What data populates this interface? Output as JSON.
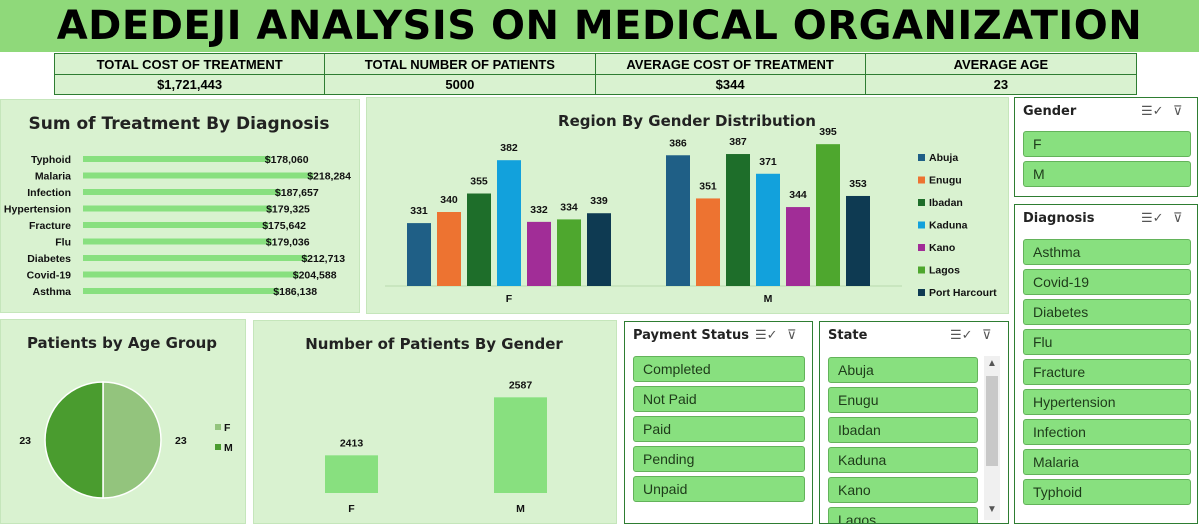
{
  "title": "ADEDEJI ANALYSIS ON MEDICAL ORGANIZATION",
  "kpis": [
    {
      "label": "TOTAL COST OF TREATMENT",
      "value": "$1,721,443"
    },
    {
      "label": "TOTAL NUMBER OF PATIENTS",
      "value": "5000"
    },
    {
      "label": "AVERAGE COST OF TREATMENT",
      "value": "$344"
    },
    {
      "label": "AVERAGE AGE",
      "value": "23"
    }
  ],
  "colors": {
    "accent": "#8fd97a",
    "panel_bg": "#d9f2d0",
    "bar_green": "#88e07f",
    "pie_f": "#93c47d",
    "pie_m": "#4a9c2f"
  },
  "chart_data": [
    {
      "id": "treatment",
      "type": "bar",
      "orientation": "horizontal",
      "title": "Sum of Treatment By Diagnosis",
      "categories": [
        "Typhoid",
        "Malaria",
        "Infection",
        "Hypertension",
        "Fracture",
        "Flu",
        "Diabetes",
        "Covid-19",
        "Asthma"
      ],
      "values": [
        178060,
        218284,
        187657,
        179325,
        175642,
        179036,
        212713,
        204588,
        186138
      ],
      "labels": [
        "$178,060",
        "$218,284",
        "$187,657",
        "$179,325",
        "$175,642",
        "$179,036",
        "$212,713",
        "$204,588",
        "$186,138"
      ],
      "xlim": [
        0,
        220000
      ]
    },
    {
      "id": "region",
      "type": "bar",
      "title": "Region By Gender Distribution",
      "categories": [
        "F",
        "M"
      ],
      "series": [
        {
          "name": "Abuja",
          "values": [
            331,
            386
          ],
          "color": "#1f5f86"
        },
        {
          "name": "Enugu",
          "values": [
            340,
            351
          ],
          "color": "#ed7331"
        },
        {
          "name": "Ibadan",
          "values": [
            355,
            387
          ],
          "color": "#1e6e2a"
        },
        {
          "name": "Kaduna",
          "values": [
            382,
            371
          ],
          "color": "#12a1dc"
        },
        {
          "name": "Kano",
          "values": [
            332,
            344
          ],
          "color": "#a12d97"
        },
        {
          "name": "Lagos",
          "values": [
            334,
            395
          ],
          "color": "#4ea72e"
        },
        {
          "name": "Port Harcourt",
          "values": [
            339,
            353
          ],
          "color": "#0e3a52"
        }
      ],
      "ylim": [
        280,
        400
      ],
      "legend": "right"
    },
    {
      "id": "age",
      "type": "pie",
      "title": "Patients by Age Group",
      "categories": [
        "F",
        "M"
      ],
      "values": [
        23,
        23
      ],
      "labels": [
        "23",
        "23"
      ],
      "colors": [
        "#93c47d",
        "#4a9c2f"
      ],
      "legend": "right"
    },
    {
      "id": "gender",
      "type": "bar",
      "title": "Number of Patients By Gender",
      "categories": [
        "F",
        "M"
      ],
      "values": [
        2413,
        2587
      ],
      "labels": [
        "2413",
        "2587"
      ],
      "ylim": [
        2300,
        2600
      ]
    }
  ],
  "slicers": {
    "gender": {
      "title": "Gender",
      "items": [
        "F",
        "M"
      ]
    },
    "diagnosis": {
      "title": "Diagnosis",
      "items": [
        "Asthma",
        "Covid-19",
        "Diabetes",
        "Flu",
        "Fracture",
        "Hypertension",
        "Infection",
        "Malaria",
        "Typhoid"
      ]
    },
    "payment": {
      "title": "Payment Status",
      "items": [
        "Completed",
        "Not Paid",
        "Paid",
        "Pending",
        "Unpaid"
      ]
    },
    "state": {
      "title": "State",
      "items": [
        "Abuja",
        "Enugu",
        "Ibadan",
        "Kaduna",
        "Kano",
        "Lagos"
      ]
    }
  },
  "icons": {
    "multiselect": "multi-select-icon",
    "clear": "clear-filter-icon"
  }
}
